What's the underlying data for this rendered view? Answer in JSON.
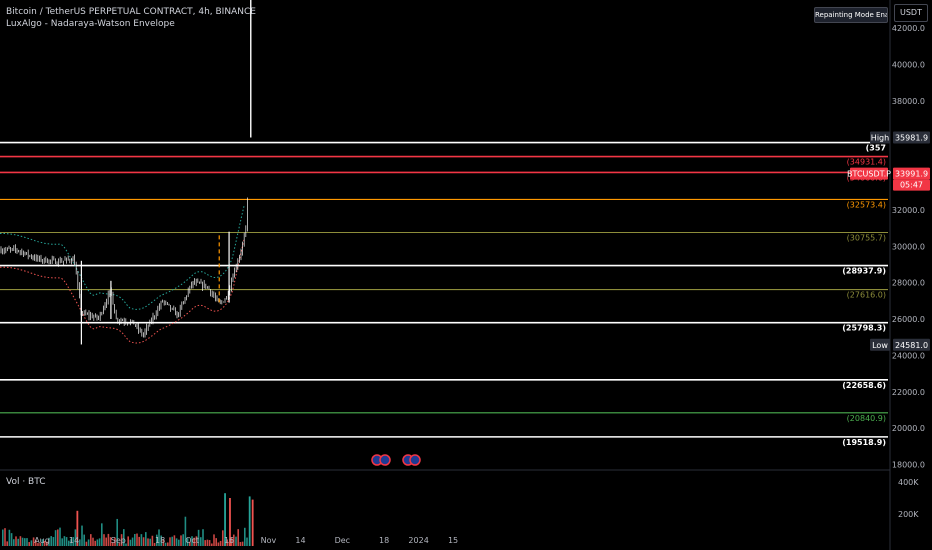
{
  "header": {
    "symbol": "Bitcoin / TetherUS PERPETUAL CONTRACT, 4h, BINANCE",
    "indicator": "LuxAlgo - Nadaraya-Watson Envelope",
    "volume_label": "Vol · BTC"
  },
  "badge": "Repainting Mode Enabled",
  "currency": "USDT",
  "colors": {
    "background": "#000000",
    "up": "#26a69a",
    "down": "#ef5350",
    "white_level": "#ffffff",
    "red_level": "#f23645",
    "orange_level": "#ff9800",
    "olive_level": "#8d8d3a",
    "green_level": "#4caf50",
    "envelope_upper": "#26a69a",
    "envelope_lower": "#ef5350",
    "candles": "#ffffff",
    "price_tag": "#f23645",
    "high_tag": "#2a2e39"
  },
  "chart_data": {
    "type": "candlestick",
    "price_axis": [
      {
        "value": 42000,
        "label": "42000.0"
      },
      {
        "value": 40000,
        "label": "40000.0"
      },
      {
        "value": 38000,
        "label": "38000.0"
      },
      {
        "value": 32000,
        "label": "32000.0"
      },
      {
        "value": 30000,
        "label": "30000.0"
      },
      {
        "value": 28000,
        "label": "28000.0"
      },
      {
        "value": 26000,
        "label": "26000.0"
      },
      {
        "value": 24000,
        "label": "24000.0"
      },
      {
        "value": 22000,
        "label": "22000.0"
      },
      {
        "value": 20000,
        "label": "20000.0"
      },
      {
        "value": 18000,
        "label": "18000.0"
      }
    ],
    "volume_axis": [
      {
        "value": 400000,
        "label": "400K"
      },
      {
        "value": 200000,
        "label": "200K"
      }
    ],
    "time_axis": [
      {
        "date": "2023-08-01",
        "label": "Aug"
      },
      {
        "date": "2023-08-14",
        "label": "14"
      },
      {
        "date": "2023-09-01",
        "label": "Sep"
      },
      {
        "date": "2023-09-18",
        "label": "18"
      },
      {
        "date": "2023-10-01",
        "label": "Oct"
      },
      {
        "date": "2023-10-16",
        "label": "16"
      },
      {
        "date": "2023-11-01",
        "label": "Nov"
      },
      {
        "date": "2023-11-14",
        "label": "14"
      },
      {
        "date": "2023-12-01",
        "label": "Dec"
      },
      {
        "date": "2023-12-18",
        "label": "18"
      },
      {
        "date": "2024-01-01",
        "label": "2024"
      },
      {
        "date": "2024-01-15",
        "label": "15"
      }
    ],
    "levels": [
      {
        "value": 35700,
        "label": "(357",
        "kind": "white"
      },
      {
        "value": 34931.4,
        "label": "(34931.4)",
        "kind": "red"
      },
      {
        "value": 34060.6,
        "label": "(34060.6)",
        "kind": "red"
      },
      {
        "value": 32573.4,
        "label": "(32573.4)",
        "kind": "orange"
      },
      {
        "value": 30755.7,
        "label": "(30755.7)",
        "kind": "olive"
      },
      {
        "value": 28937.9,
        "label": "(28937.9)",
        "kind": "white"
      },
      {
        "value": 27616.0,
        "label": "(27616.0)",
        "kind": "olive"
      },
      {
        "value": 25798.3,
        "label": "(25798.3)",
        "kind": "white"
      },
      {
        "value": 22658.6,
        "label": "(22658.6)",
        "kind": "white"
      },
      {
        "value": 20840.9,
        "label": "(20840.9)",
        "kind": "green"
      },
      {
        "value": 19518.9,
        "label": "(19518.9)",
        "kind": "white"
      }
    ],
    "high": {
      "label": "High",
      "value": 35981.9,
      "text": "35981.9"
    },
    "low": {
      "label": "Low",
      "value": 24581.0,
      "text": "24581.0"
    },
    "current": {
      "symbol": "BTCUSDT.P",
      "value": 33991.9,
      "text": "33991.9",
      "countdown": "05:47"
    },
    "path": [
      {
        "date": "2023-07-22",
        "price": 29800
      },
      {
        "date": "2023-07-30",
        "price": 29300
      },
      {
        "date": "2023-08-07",
        "price": 29150
      },
      {
        "date": "2023-08-14",
        "price": 29300
      },
      {
        "date": "2023-08-17",
        "price": 26300
      },
      {
        "date": "2023-08-24",
        "price": 26050
      },
      {
        "date": "2023-08-29",
        "price": 27600
      },
      {
        "date": "2023-08-31",
        "price": 26000
      },
      {
        "date": "2023-09-07",
        "price": 25800
      },
      {
        "date": "2023-09-11",
        "price": 25100
      },
      {
        "date": "2023-09-19",
        "price": 27000
      },
      {
        "date": "2023-09-25",
        "price": 26200
      },
      {
        "date": "2023-10-01",
        "price": 28000
      },
      {
        "date": "2023-10-07",
        "price": 27800
      },
      {
        "date": "2023-10-12",
        "price": 26800
      },
      {
        "date": "2023-10-15",
        "price": 27200
      },
      {
        "date": "2023-10-18",
        "price": 28600
      },
      {
        "date": "2023-10-21",
        "price": 29800
      },
      {
        "date": "2023-10-23",
        "price": 31000
      },
      {
        "date": "2023-10-24",
        "price": 34500
      },
      {
        "date": "2023-10-24",
        "price": 33991.9
      }
    ]
  }
}
